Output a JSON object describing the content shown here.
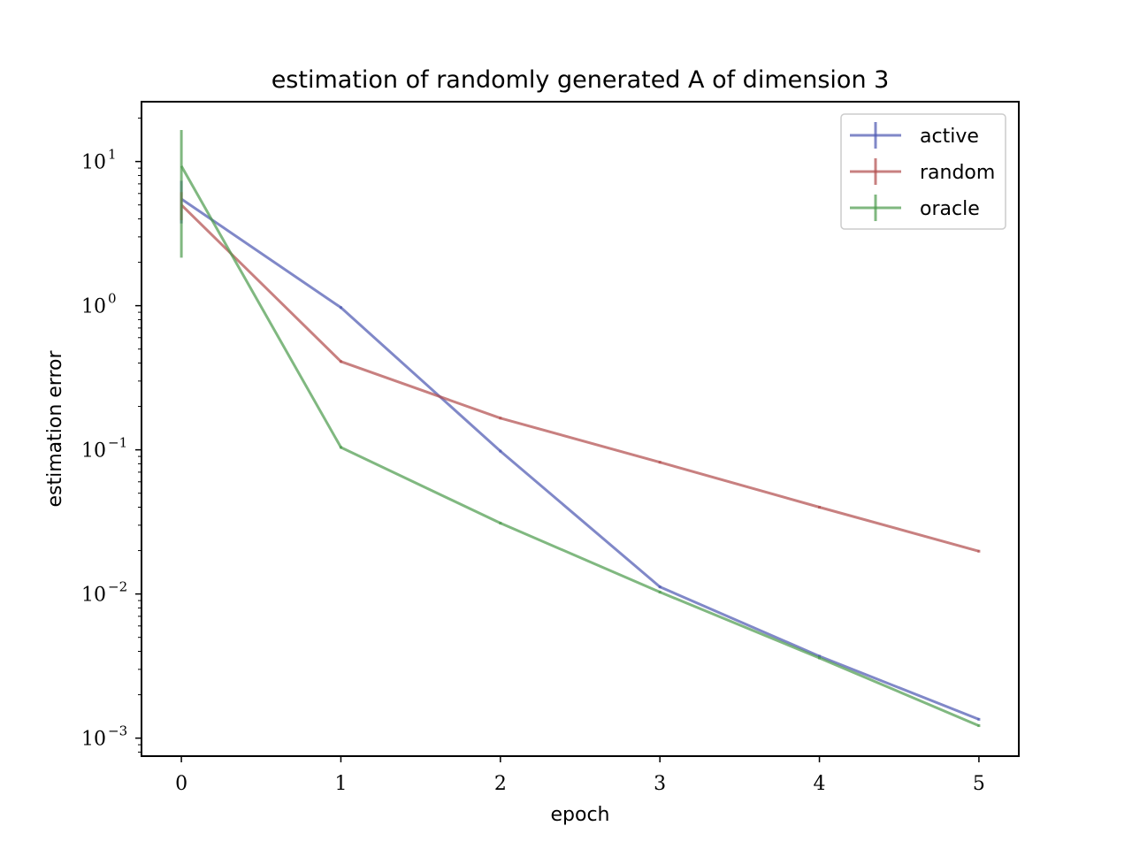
{
  "chart_data": {
    "type": "line",
    "title": "estimation of randomly generated A of dimension 3",
    "xlabel": "epoch",
    "ylabel": "estimation error",
    "yscale": "log",
    "xlim": [
      -0.25,
      5.25
    ],
    "ylim": [
      0.00075,
      26
    ],
    "x_ticks": [
      "0",
      "1",
      "2",
      "3",
      "4",
      "5"
    ],
    "y_ticks": [
      {
        "base": "10",
        "exp": "1",
        "value": 10
      },
      {
        "base": "10",
        "exp": "0",
        "value": 1
      },
      {
        "base": "10",
        "exp": "−1",
        "value": 0.1
      },
      {
        "base": "10",
        "exp": "−2",
        "value": 0.01
      },
      {
        "base": "10",
        "exp": "−3",
        "value": 0.001
      }
    ],
    "grid": false,
    "legend_position": "top-right",
    "x": [
      0,
      1,
      2,
      3,
      4,
      5
    ],
    "series": [
      {
        "name": "active",
        "color": "#4a56b0",
        "values": [
          5.5,
          0.97,
          0.098,
          0.0112,
          0.0037,
          0.00135
        ],
        "error_low": [
          3.8,
          0.97,
          0.098,
          0.0112,
          0.0037,
          0.00135
        ],
        "error_high": [
          7.2,
          0.97,
          0.098,
          0.0112,
          0.0037,
          0.00135
        ]
      },
      {
        "name": "random",
        "color": "#b04a4a",
        "values": [
          5.0,
          0.41,
          0.166,
          0.082,
          0.04,
          0.0198
        ],
        "error_low": [
          4.0,
          0.41,
          0.166,
          0.082,
          0.04,
          0.0198
        ],
        "error_high": [
          6.0,
          0.41,
          0.166,
          0.082,
          0.04,
          0.0198
        ]
      },
      {
        "name": "oracle",
        "color": "#4a9a4a",
        "values": [
          9.3,
          0.104,
          0.031,
          0.0103,
          0.0036,
          0.00122
        ],
        "error_low": [
          2.2,
          0.104,
          0.031,
          0.0103,
          0.0036,
          0.00122
        ],
        "error_high": [
          16.2,
          0.104,
          0.031,
          0.0103,
          0.0036,
          0.00122
        ]
      }
    ]
  }
}
